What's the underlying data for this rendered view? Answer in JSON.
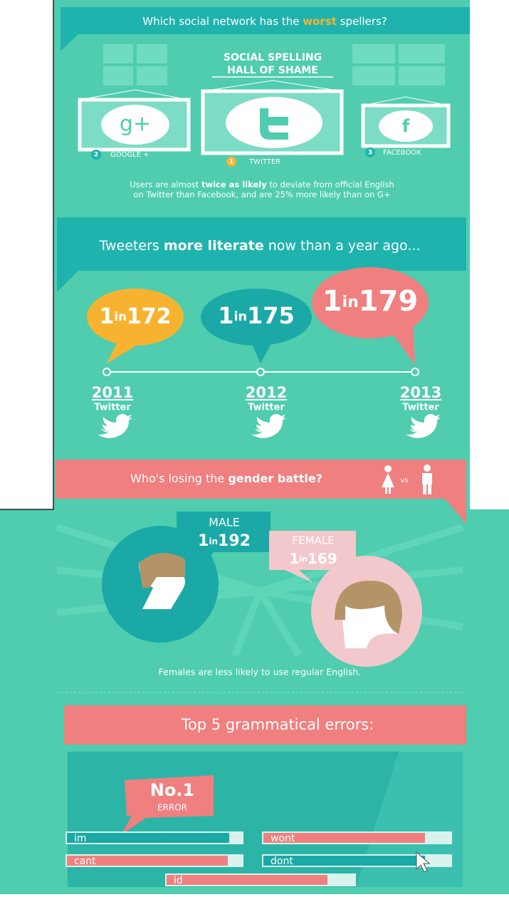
{
  "header": {
    "question": [
      "Which social network has the ",
      "worst",
      " spellers?"
    ]
  },
  "hall_of_shame": {
    "title": [
      "SOCIAL SPELLING",
      "HALL OF SHAME"
    ]
  },
  "networks": [
    {
      "rank": "2",
      "label": "GOOGLE +",
      "icon": "g+"
    },
    {
      "rank": "1",
      "label": "TWITTER"
    },
    {
      "rank": "3",
      "label": "FACEBOOK",
      "icon": "f"
    }
  ],
  "summary": {
    "lines": [
      [
        "Users are almost ",
        "twice as likely",
        " to deviate from official English"
      ],
      [
        "on Twitter than Facebook, and are 25% more likely than on G+"
      ]
    ]
  },
  "literacy": {
    "title": [
      "Tweeters ",
      "more literate",
      " now than a year ago..."
    ],
    "timeline": [
      {
        "ratio": [
          "1",
          "in",
          "172"
        ],
        "year": "2011",
        "network": "Twitter"
      },
      {
        "ratio": [
          "1",
          "in",
          "175"
        ],
        "year": "2012",
        "network": "Twitter"
      },
      {
        "ratio": [
          "1",
          "in",
          "179"
        ],
        "year": "2013",
        "network": "Twitter"
      }
    ]
  },
  "gender": {
    "title": [
      "Who's losing the ",
      "gender battle?"
    ],
    "vs": "vs",
    "male": {
      "label": "MALE",
      "ratio": [
        "1",
        "in",
        "192"
      ]
    },
    "female": {
      "label": "FEMALE",
      "ratio": [
        "1",
        "in",
        "169"
      ]
    },
    "note": "Females are less likely to use regular English."
  },
  "errors": {
    "title": "Top 5 grammatical errors:",
    "badge": [
      "No.1",
      "ERROR"
    ],
    "items": [
      "im",
      "wont",
      "cant",
      "dont",
      "id"
    ]
  }
}
